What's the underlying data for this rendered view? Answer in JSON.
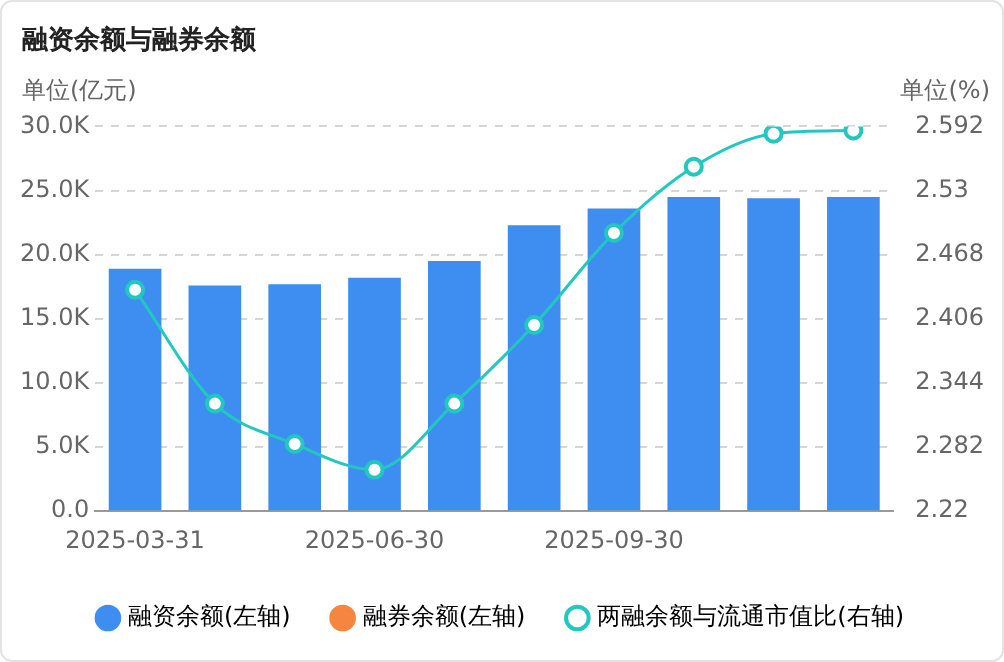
{
  "chart_data": {
    "type": "bar",
    "title": "融资余额与融券余额",
    "ylabel": "单位(亿元)",
    "y2label": "单位(%)",
    "categories": [
      "2025-03-31",
      null,
      null,
      "2025-06-30",
      null,
      null,
      "2025-09-30",
      null,
      null,
      null
    ],
    "series": [
      {
        "name": "融资余额(左轴)",
        "color": "#3d8ef0",
        "values": [
          18900,
          17600,
          17700,
          18200,
          19500,
          22300,
          23600,
          24500,
          24400,
          24500
        ]
      },
      {
        "name": "融券余额(左轴)",
        "color": "#f5853f",
        "values": [
          null,
          null,
          null,
          null,
          null,
          null,
          null,
          null,
          null,
          null
        ]
      },
      {
        "name": "两融余额与流通市值比(右轴)",
        "type": "line",
        "axis": "y2",
        "color": "#22c7c0",
        "values": [
          2.434,
          2.324,
          2.285,
          2.26,
          2.324,
          2.4,
          2.489,
          2.553,
          2.585,
          2.588
        ]
      }
    ],
    "ylim": [
      0,
      30000
    ],
    "yticks": [
      {
        "value": 0,
        "label": "0.0"
      },
      {
        "value": 5000,
        "label": "5.0K"
      },
      {
        "value": 10000,
        "label": "10.0K"
      },
      {
        "value": 15000,
        "label": "15.0K"
      },
      {
        "value": 20000,
        "label": "20.0K"
      },
      {
        "value": 25000,
        "label": "25.0K"
      },
      {
        "value": 30000,
        "label": "30.0K"
      }
    ],
    "y2lim": [
      2.22,
      2.592
    ],
    "y2ticks": [
      2.22,
      2.282,
      2.344,
      2.406,
      2.468,
      2.53,
      2.592
    ],
    "grid": "y",
    "legend": "bottom",
    "marker": "circle"
  }
}
